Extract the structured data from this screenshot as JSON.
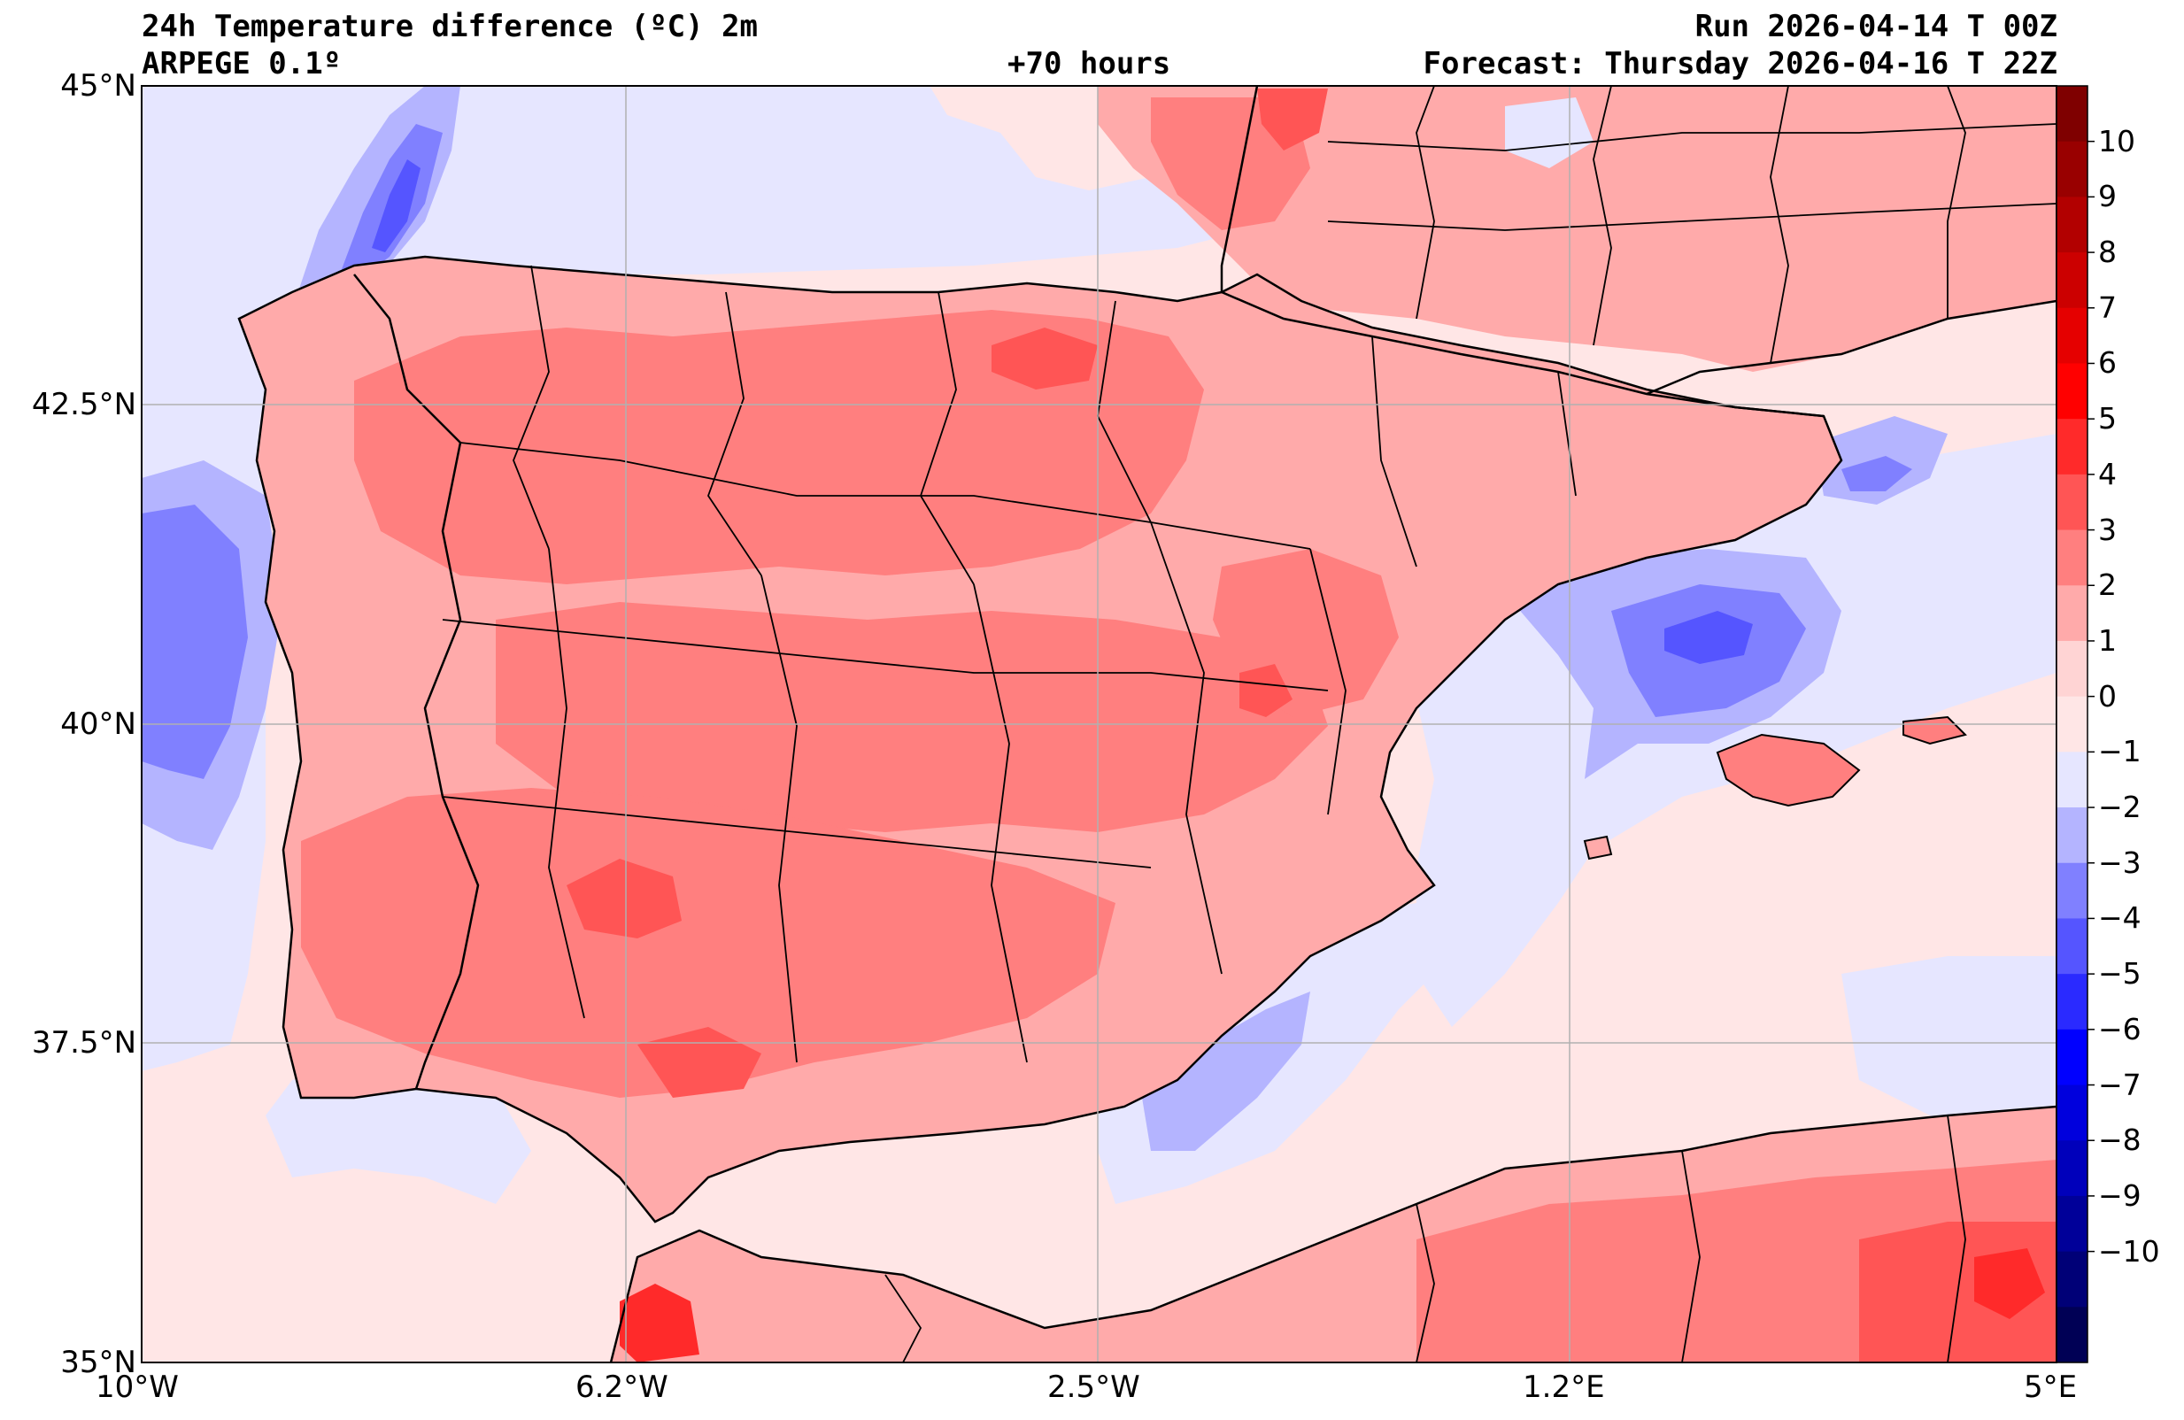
{
  "header": {
    "title": "24h Temperature difference (ºC) 2m",
    "model": "ARPEGE 0.1º",
    "lead_time": "+70 hours",
    "run": "Run 2026-04-14 T 00Z",
    "forecast": "Forecast: Thursday 2026-04-16 T 22Z"
  },
  "axes": {
    "lon_labels": [
      "10°W",
      "6.2°W",
      "2.5°W",
      "1.2°E",
      "5°E"
    ],
    "lat_labels": [
      "45°N",
      "42.5°N",
      "40°N",
      "37.5°N",
      "35°N"
    ]
  },
  "colorbar": {
    "labels": [
      "10",
      "9",
      "8",
      "7",
      "6",
      "5",
      "4",
      "3",
      "2",
      "1",
      "0",
      "−1",
      "−2",
      "−3",
      "−4",
      "−5",
      "−6",
      "−7",
      "−8",
      "−9",
      "−10"
    ],
    "colors": [
      "#7f0000",
      "#990000",
      "#b20000",
      "#cc0000",
      "#e50000",
      "#ff0000",
      "#ff2a2a",
      "#ff5555",
      "#ff7f7f",
      "#ffaaaa",
      "#ffd4d4",
      "#ffe6e6",
      "#e6e6ff",
      "#b4b4ff",
      "#8080ff",
      "#5555ff",
      "#2a2aff",
      "#0000ff",
      "#0000dd",
      "#0000bb",
      "#000099",
      "#000077",
      "#000055"
    ],
    "sea_color": "#ffe6e6",
    "atlantic_color": "#e6e6ff"
  },
  "map": {
    "bounds": {
      "lon_min": -10,
      "lon_max": 5,
      "lat_min": 35,
      "lat_max": 45
    },
    "grid": true
  }
}
